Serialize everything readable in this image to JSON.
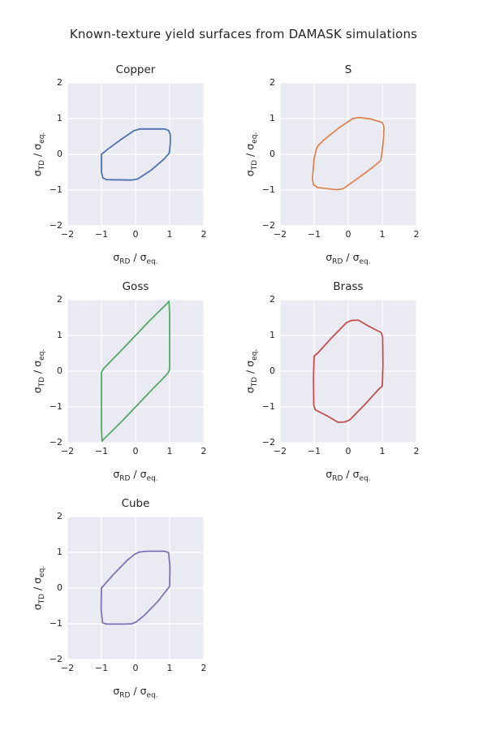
{
  "title": "Known-texture yield surfaces from DAMASK simulations",
  "colors": {
    "panel": "#EAEAF2",
    "grid": "#FFFFFF",
    "text": "#262626",
    "figure_bg": "#FFFFFF"
  },
  "chart_data": [
    {
      "type": "line",
      "title": "Copper",
      "color": "#4C72B0",
      "xlabel": "σ_RD / σ_eq.",
      "ylabel": "σ_TD / σ_eq.",
      "xlabel_parts": [
        {
          "t": "σ"
        },
        {
          "t": "RD",
          "sub": true
        },
        {
          "t": " / "
        },
        {
          "t": "σ"
        },
        {
          "t": "eq.",
          "sub": true
        }
      ],
      "ylabel_parts": [
        {
          "t": "σ"
        },
        {
          "t": "TD",
          "sub": true
        },
        {
          "t": " / "
        },
        {
          "t": "σ"
        },
        {
          "t": "eq.",
          "sub": true
        }
      ],
      "xlim": [
        -2,
        2
      ],
      "ylim": [
        -2,
        2
      ],
      "xtick_values": [
        -2,
        -1,
        0,
        1,
        2
      ],
      "ytick_values": [
        -2,
        -1,
        0,
        1,
        2
      ],
      "xticks": [
        "−2",
        "−1",
        "0",
        "1",
        "2"
      ],
      "yticks": [
        "−2",
        "−1",
        "0",
        "1",
        "2"
      ],
      "grid": true,
      "series": [
        {
          "closed": true,
          "points": [
            [
              -1.0,
              0.0
            ],
            [
              -0.82,
              0.14
            ],
            [
              -0.42,
              0.42
            ],
            [
              -0.05,
              0.66
            ],
            [
              0.12,
              0.71
            ],
            [
              0.85,
              0.71
            ],
            [
              0.97,
              0.67
            ],
            [
              1.02,
              0.55
            ],
            [
              1.02,
              0.3
            ],
            [
              0.99,
              0.04
            ],
            [
              0.85,
              -0.12
            ],
            [
              0.45,
              -0.45
            ],
            [
              0.06,
              -0.69
            ],
            [
              -0.12,
              -0.72
            ],
            [
              -0.85,
              -0.71
            ],
            [
              -0.96,
              -0.66
            ],
            [
              -1.0,
              -0.5
            ],
            [
              -1.0,
              0.0
            ]
          ]
        }
      ]
    },
    {
      "type": "line",
      "title": "S",
      "color": "#DD8452",
      "xlabel": "σ_RD / σ_eq.",
      "ylabel": "σ_TD / σ_eq.",
      "xlabel_parts": [
        {
          "t": "σ"
        },
        {
          "t": "RD",
          "sub": true
        },
        {
          "t": " / "
        },
        {
          "t": "σ"
        },
        {
          "t": "eq.",
          "sub": true
        }
      ],
      "ylabel_parts": [
        {
          "t": "σ"
        },
        {
          "t": "TD",
          "sub": true
        },
        {
          "t": " / "
        },
        {
          "t": "σ"
        },
        {
          "t": "eq.",
          "sub": true
        }
      ],
      "xlim": [
        -2,
        2
      ],
      "ylim": [
        -2,
        2
      ],
      "xtick_values": [
        -2,
        -1,
        0,
        1,
        2
      ],
      "ytick_values": [
        -2,
        -1,
        0,
        1,
        2
      ],
      "xticks": [
        "−2",
        "−1",
        "0",
        "1",
        "2"
      ],
      "yticks": [
        "−2",
        "−1",
        "0",
        "1",
        "2"
      ],
      "grid": true,
      "series": [
        {
          "closed": true,
          "points": [
            [
              -0.93,
              0.16
            ],
            [
              -1.0,
              -0.12
            ],
            [
              -1.05,
              -0.68
            ],
            [
              -1.02,
              -0.85
            ],
            [
              -0.9,
              -0.93
            ],
            [
              -0.33,
              -0.99
            ],
            [
              -0.14,
              -0.96
            ],
            [
              0.3,
              -0.66
            ],
            [
              0.75,
              -0.34
            ],
            [
              0.96,
              -0.17
            ],
            [
              1.0,
              0.12
            ],
            [
              1.04,
              0.5
            ],
            [
              1.05,
              0.78
            ],
            [
              1.0,
              0.89
            ],
            [
              0.65,
              0.99
            ],
            [
              0.32,
              1.03
            ],
            [
              0.13,
              1.0
            ],
            [
              -0.3,
              0.72
            ],
            [
              -0.72,
              0.4
            ],
            [
              -0.9,
              0.22
            ],
            [
              -0.93,
              0.16
            ]
          ]
        }
      ]
    },
    {
      "type": "line",
      "title": "Goss",
      "color": "#55A868",
      "xlabel": "σ_RD / σ_eq.",
      "ylabel": "σ_TD / σ_eq.",
      "xlabel_parts": [
        {
          "t": "σ"
        },
        {
          "t": "RD",
          "sub": true
        },
        {
          "t": " / "
        },
        {
          "t": "σ"
        },
        {
          "t": "eq.",
          "sub": true
        }
      ],
      "ylabel_parts": [
        {
          "t": "σ"
        },
        {
          "t": "TD",
          "sub": true
        },
        {
          "t": " / "
        },
        {
          "t": "σ"
        },
        {
          "t": "eq.",
          "sub": true
        }
      ],
      "xlim": [
        -2,
        2
      ],
      "ylim": [
        -2,
        2
      ],
      "xtick_values": [
        -2,
        -1,
        0,
        1,
        2
      ],
      "ytick_values": [
        -2,
        -1,
        0,
        1,
        2
      ],
      "xticks": [
        "−2",
        "−1",
        "0",
        "1",
        "2"
      ],
      "yticks": [
        "−2",
        "−1",
        "0",
        "1",
        "2"
      ],
      "grid": true,
      "series": [
        {
          "closed": true,
          "points": [
            [
              -1.0,
              -0.03
            ],
            [
              -0.93,
              0.08
            ],
            [
              -0.5,
              0.5
            ],
            [
              0.4,
              1.4
            ],
            [
              0.93,
              1.9
            ],
            [
              0.98,
              1.96
            ],
            [
              1.0,
              1.6
            ],
            [
              1.0,
              0.1
            ],
            [
              0.99,
              0.02
            ],
            [
              0.93,
              -0.08
            ],
            [
              0.5,
              -0.5
            ],
            [
              -0.4,
              -1.4
            ],
            [
              -0.93,
              -1.9
            ],
            [
              -0.98,
              -1.96
            ],
            [
              -1.0,
              -1.6
            ],
            [
              -1.0,
              -0.1
            ],
            [
              -1.0,
              -0.03
            ]
          ]
        }
      ]
    },
    {
      "type": "line",
      "title": "Brass",
      "color": "#C44E52",
      "xlabel": "σ_RD / σ_eq.",
      "ylabel": "σ_TD / σ_eq.",
      "xlabel_parts": [
        {
          "t": "σ"
        },
        {
          "t": "RD",
          "sub": true
        },
        {
          "t": " / "
        },
        {
          "t": "σ"
        },
        {
          "t": "eq.",
          "sub": true
        }
      ],
      "ylabel_parts": [
        {
          "t": "σ"
        },
        {
          "t": "TD",
          "sub": true
        },
        {
          "t": " / "
        },
        {
          "t": "σ"
        },
        {
          "t": "eq.",
          "sub": true
        }
      ],
      "xlim": [
        -2,
        2
      ],
      "ylim": [
        -2,
        2
      ],
      "xtick_values": [
        -2,
        -1,
        0,
        1,
        2
      ],
      "ytick_values": [
        -2,
        -1,
        0,
        1,
        2
      ],
      "xticks": [
        "−2",
        "−1",
        "0",
        "1",
        "2"
      ],
      "yticks": [
        "−2",
        "−1",
        "0",
        "1",
        "2"
      ],
      "grid": true,
      "series": [
        {
          "closed": true,
          "points": [
            [
              -1.0,
              0.42
            ],
            [
              -1.02,
              -0.2
            ],
            [
              -1.01,
              -0.95
            ],
            [
              -0.97,
              -1.08
            ],
            [
              -0.6,
              -1.26
            ],
            [
              -0.3,
              -1.43
            ],
            [
              -0.1,
              -1.42
            ],
            [
              0.05,
              -1.36
            ],
            [
              0.5,
              -0.92
            ],
            [
              0.9,
              -0.5
            ],
            [
              1.0,
              -0.42
            ],
            [
              1.02,
              0.2
            ],
            [
              1.01,
              0.95
            ],
            [
              0.97,
              1.08
            ],
            [
              0.6,
              1.26
            ],
            [
              0.3,
              1.43
            ],
            [
              0.1,
              1.42
            ],
            [
              -0.05,
              1.36
            ],
            [
              -0.5,
              0.92
            ],
            [
              -0.9,
              0.5
            ],
            [
              -1.0,
              0.42
            ]
          ]
        }
      ]
    },
    {
      "type": "line",
      "title": "Cube",
      "color": "#8172B3",
      "xlabel": "σ_RD / σ_eq.",
      "ylabel": "σ_TD / σ_eq.",
      "xlabel_parts": [
        {
          "t": "σ"
        },
        {
          "t": "RD",
          "sub": true
        },
        {
          "t": " / "
        },
        {
          "t": "σ"
        },
        {
          "t": "eq.",
          "sub": true
        }
      ],
      "ylabel_parts": [
        {
          "t": "σ"
        },
        {
          "t": "TD",
          "sub": true
        },
        {
          "t": " / "
        },
        {
          "t": "σ"
        },
        {
          "t": "eq.",
          "sub": true
        }
      ],
      "xlim": [
        -2,
        2
      ],
      "ylim": [
        -2,
        2
      ],
      "xtick_values": [
        -2,
        -1,
        0,
        1,
        2
      ],
      "ytick_values": [
        -2,
        -1,
        0,
        1,
        2
      ],
      "xticks": [
        "−2",
        "−1",
        "0",
        "1",
        "2"
      ],
      "yticks": [
        "−2",
        "−1",
        "0",
        "1",
        "2"
      ],
      "grid": true,
      "series": [
        {
          "closed": true,
          "points": [
            [
              -1.0,
              0.0
            ],
            [
              -0.65,
              0.38
            ],
            [
              -0.25,
              0.77
            ],
            [
              -0.02,
              0.95
            ],
            [
              0.12,
              1.01
            ],
            [
              0.35,
              1.03
            ],
            [
              0.85,
              1.03
            ],
            [
              0.97,
              0.99
            ],
            [
              1.01,
              0.6
            ],
            [
              1.0,
              0.05
            ],
            [
              0.65,
              -0.38
            ],
            [
              0.25,
              -0.77
            ],
            [
              0.02,
              -0.95
            ],
            [
              -0.12,
              -1.0
            ],
            [
              -0.35,
              -1.01
            ],
            [
              -0.85,
              -1.01
            ],
            [
              -0.97,
              -0.97
            ],
            [
              -1.01,
              -0.6
            ],
            [
              -1.0,
              0.0
            ]
          ]
        }
      ]
    }
  ]
}
